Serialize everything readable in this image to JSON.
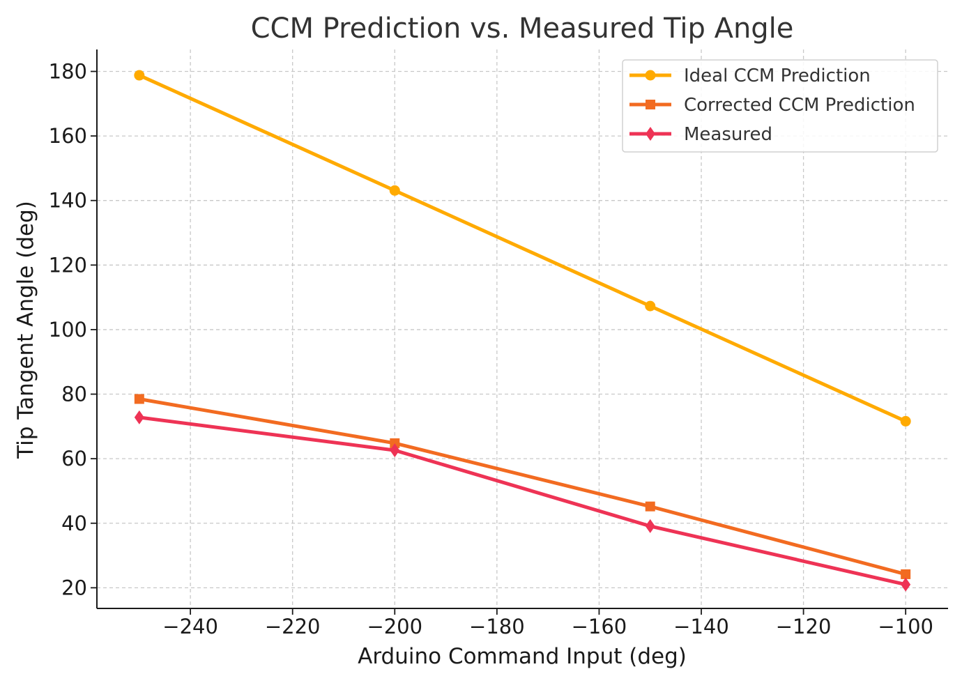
{
  "chart_data": {
    "type": "line",
    "title": "CCM Prediction vs. Measured Tip Angle",
    "xlabel": "Arduino Command Input (deg)",
    "ylabel": "Tip Tangent Angle (deg)",
    "x": [
      -250,
      -200,
      -150,
      -100
    ],
    "xlim": [
      -258.3,
      -91.7
    ],
    "ylim": [
      13.6,
      186.8
    ],
    "xticks": [
      -240,
      -220,
      -200,
      -180,
      -160,
      -140,
      -120,
      -100
    ],
    "xtick_labels": [
      "−240",
      "−220",
      "−200",
      "−180",
      "−160",
      "−140",
      "−120",
      "−100"
    ],
    "yticks": [
      20,
      40,
      60,
      80,
      100,
      120,
      140,
      160,
      180
    ],
    "ytick_labels": [
      "20",
      "40",
      "60",
      "80",
      "100",
      "120",
      "140",
      "160",
      "180"
    ],
    "grid": true,
    "legend_position": "top-right",
    "series": [
      {
        "name": "Ideal CCM Prediction",
        "values": [
          178.8,
          143.1,
          107.3,
          71.6
        ],
        "color": "#FFAA00",
        "marker": "circle"
      },
      {
        "name": "Corrected CCM Prediction",
        "values": [
          78.5,
          64.8,
          45.2,
          24.2
        ],
        "color": "#F26B21",
        "marker": "square"
      },
      {
        "name": "Measured",
        "values": [
          72.8,
          62.6,
          39.1,
          21.0
        ],
        "color": "#EE3355",
        "marker": "diamond"
      }
    ]
  }
}
